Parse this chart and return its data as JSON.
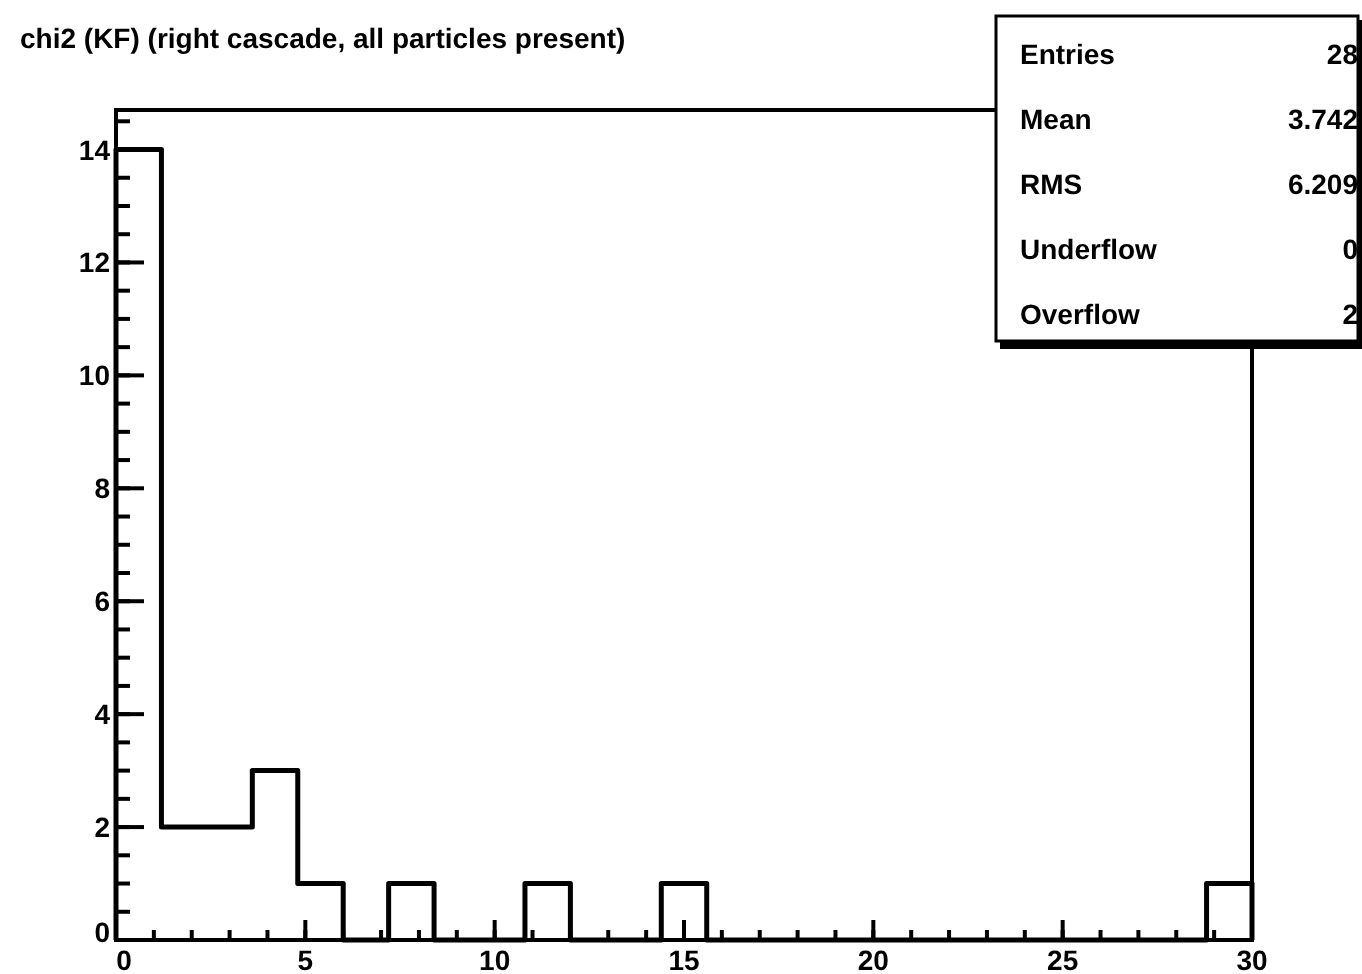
{
  "chart_data": {
    "type": "histogram",
    "title": "chi2 (KF) (right cascade, all particles present)",
    "bins": [
      0,
      1.2,
      2.4,
      3.6,
      4.8,
      6,
      7.2,
      8.4,
      9.6,
      10.8,
      12,
      13.2,
      14.4,
      15.6,
      16.8,
      18,
      19.2,
      20.4,
      21.6,
      22.8,
      24,
      25.2,
      26.4,
      27.6,
      28.8,
      30
    ],
    "values": [
      14,
      2,
      2,
      3,
      1,
      0,
      1,
      0,
      0,
      1,
      0,
      0,
      1,
      0,
      0,
      0,
      0,
      0,
      0,
      0,
      0,
      0,
      0,
      0,
      1
    ],
    "color": "#000000",
    "xlim": [
      0,
      30
    ],
    "xticks": [
      0,
      5,
      10,
      15,
      20,
      25,
      30
    ],
    "ylim": [
      0,
      14.7
    ],
    "yticks": [
      0,
      2,
      4,
      6,
      8,
      10,
      12,
      14
    ],
    "annotations": [
      "Entries",
      "28",
      "Mean",
      "3.742",
      "RMS",
      "6.209",
      "Underflow",
      "0",
      "Overflow",
      "2"
    ]
  }
}
